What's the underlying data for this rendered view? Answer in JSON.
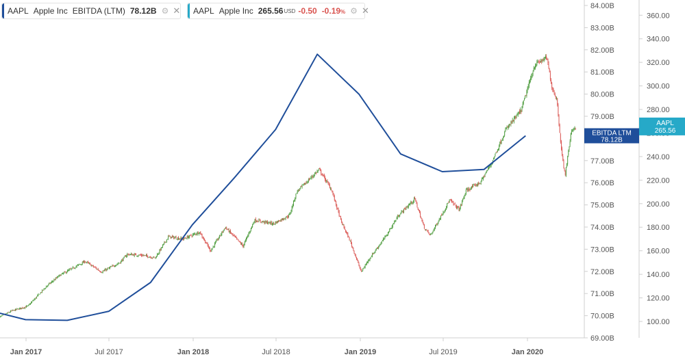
{
  "legend": [
    {
      "ticker": "AAPL",
      "name": "Apple Inc",
      "metric": "EBITDA (LTM)",
      "value": "78.12B",
      "color": "#1f4e9a"
    },
    {
      "ticker": "AAPL",
      "name": "Apple Inc",
      "value": "265.56",
      "unit": "USD",
      "change": "-0.50",
      "change_pct": "-0.19",
      "pct_sign": "%",
      "color": "#26a9c8"
    }
  ],
  "chart_data": {
    "type": "line",
    "x_tick_labels": [
      "Jan 2017",
      "Jul 2017",
      "Jan 2018",
      "Jul 2018",
      "Jan 2019",
      "Jul 2019",
      "Jan 2020"
    ],
    "left_axis": {
      "ticks": [
        "84.00B",
        "83.00B",
        "82.00B",
        "81.00B",
        "80.00B",
        "79.00B",
        "78.00B",
        "77.00B",
        "76.00B",
        "75.00B",
        "74.00B",
        "73.00B",
        "72.00B",
        "71.00B",
        "70.00B",
        "69.00B"
      ],
      "range": [
        69,
        84
      ]
    },
    "right_axis": {
      "ticks": [
        "360.00",
        "340.00",
        "320.00",
        "300.00",
        "280.00",
        "260.00",
        "240.00",
        "220.00",
        "200.00",
        "180.00",
        "160.00",
        "140.00",
        "120.00",
        "100.00"
      ],
      "range": [
        94,
        370
      ]
    },
    "series": [
      {
        "name": "EBITDA (LTM)",
        "tag": "EBITDA LTM",
        "tag_value": "78.12B",
        "color": "#1f4e9a",
        "points": [
          [
            "2016-09-24",
            70.33
          ],
          [
            "2016-12-31",
            69.82
          ],
          [
            "2017-04-01",
            69.79
          ],
          [
            "2017-07-01",
            70.2
          ],
          [
            "2017-09-30",
            71.5
          ],
          [
            "2017-12-30",
            74.1
          ],
          [
            "2018-03-31",
            76.2
          ],
          [
            "2018-06-30",
            78.4
          ],
          [
            "2018-09-29",
            81.8
          ],
          [
            "2018-12-29",
            80.0
          ],
          [
            "2019-03-30",
            77.3
          ],
          [
            "2019-06-29",
            76.5
          ],
          [
            "2019-09-28",
            76.6
          ],
          [
            "2019-12-28",
            78.12
          ]
        ]
      },
      {
        "name": "AAPL",
        "tag": "AAPL",
        "tag_value": "265.56",
        "type": "candlestick",
        "up_color": "#4a9a3a",
        "down_color": "#d9534f",
        "path": [
          [
            "2016-11-01",
            103
          ],
          [
            "2016-12-01",
            109
          ],
          [
            "2017-01-05",
            113
          ],
          [
            "2017-02-15",
            130
          ],
          [
            "2017-03-15",
            139
          ],
          [
            "2017-05-10",
            151
          ],
          [
            "2017-06-15",
            142
          ],
          [
            "2017-07-25",
            150
          ],
          [
            "2017-08-10",
            157
          ],
          [
            "2017-09-15",
            156
          ],
          [
            "2017-10-10",
            154
          ],
          [
            "2017-11-08",
            172
          ],
          [
            "2017-12-10",
            170
          ],
          [
            "2018-01-15",
            176
          ],
          [
            "2018-02-08",
            160
          ],
          [
            "2018-03-12",
            180
          ],
          [
            "2018-04-20",
            164
          ],
          [
            "2018-05-15",
            186
          ],
          [
            "2018-06-25",
            183
          ],
          [
            "2018-07-30",
            190
          ],
          [
            "2018-08-15",
            210
          ],
          [
            "2018-09-15",
            222
          ],
          [
            "2018-10-03",
            229
          ],
          [
            "2018-10-30",
            212
          ],
          [
            "2018-11-20",
            185
          ],
          [
            "2018-12-10",
            168
          ],
          [
            "2019-01-03",
            142
          ],
          [
            "2019-01-20",
            153
          ],
          [
            "2019-02-25",
            172
          ],
          [
            "2019-03-25",
            190
          ],
          [
            "2019-04-30",
            204
          ],
          [
            "2019-05-20",
            180
          ],
          [
            "2019-06-03",
            173
          ],
          [
            "2019-07-15",
            203
          ],
          [
            "2019-08-05",
            195
          ],
          [
            "2019-08-20",
            211
          ],
          [
            "2019-09-20",
            218
          ],
          [
            "2019-10-15",
            235
          ],
          [
            "2019-11-15",
            263
          ],
          [
            "2019-12-18",
            279
          ],
          [
            "2020-01-17",
            318
          ],
          [
            "2020-02-12",
            324
          ],
          [
            "2020-02-24",
            298
          ],
          [
            "2020-03-05",
            289
          ],
          [
            "2020-03-16",
            242
          ],
          [
            "2020-03-23",
            224
          ],
          [
            "2020-04-06",
            262
          ],
          [
            "2020-04-15",
            265.56
          ]
        ]
      }
    ],
    "grid": false
  }
}
